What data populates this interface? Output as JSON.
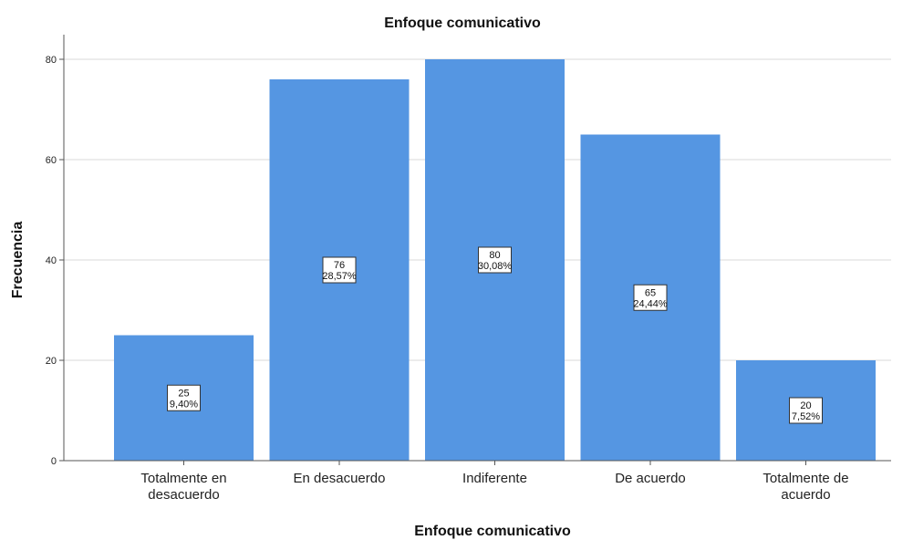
{
  "chart_data": {
    "type": "bar",
    "title": "Enfoque comunicativo",
    "xlabel": "Enfoque comunicativo",
    "ylabel": "Frecuencia",
    "categories": [
      [
        "Totalmente en",
        "desacuerdo"
      ],
      [
        "En desacuerdo"
      ],
      [
        "Indiferente"
      ],
      [
        "De acuerdo"
      ],
      [
        "Totalmente de",
        "acuerdo"
      ]
    ],
    "values": [
      25,
      76,
      80,
      65,
      20
    ],
    "percent_labels": [
      "9,40%",
      "28,57%",
      "30,08%",
      "24,44%",
      "7,52%"
    ],
    "ylim": [
      0,
      80
    ],
    "yticks": [
      0,
      20,
      40,
      60,
      80
    ],
    "grid": true,
    "bar_color": "#5596e2"
  }
}
